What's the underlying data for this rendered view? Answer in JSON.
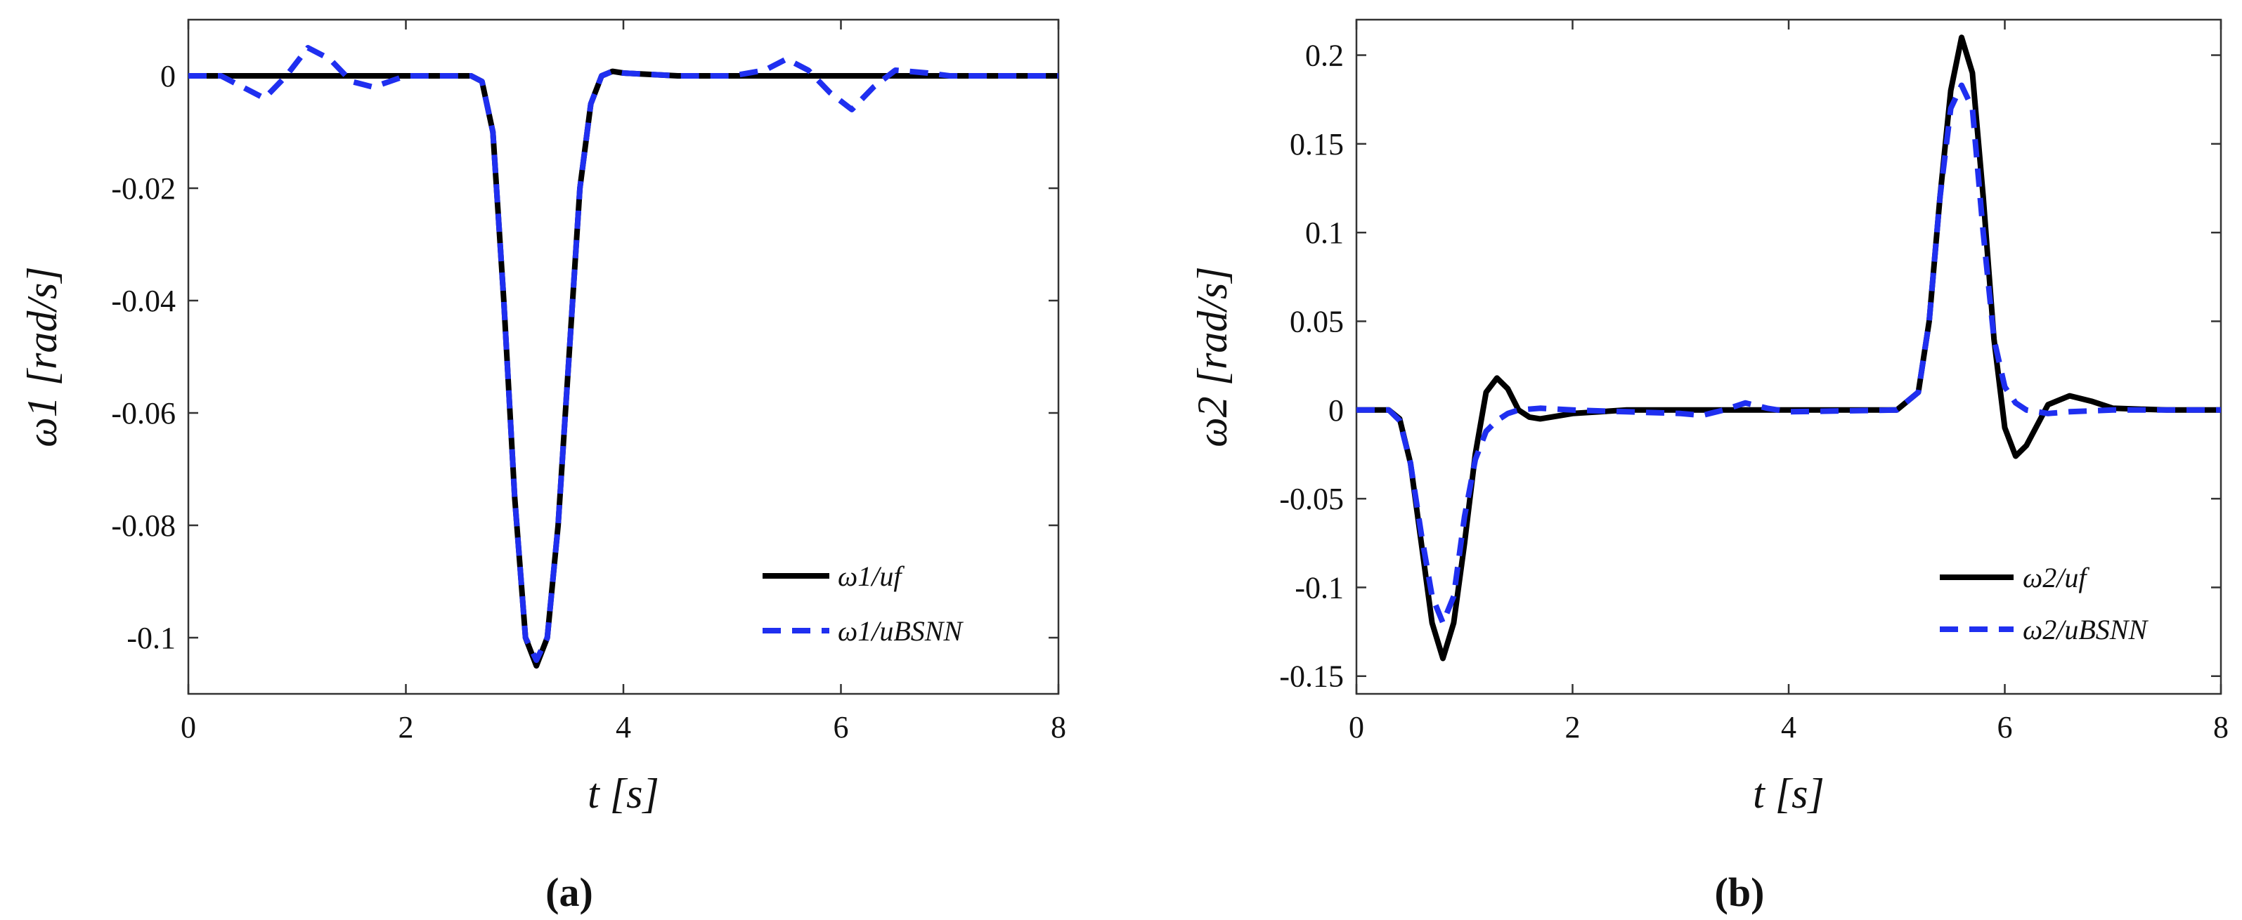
{
  "colors": {
    "uf": "#000000",
    "ubsnn": "#1f2ff0",
    "axis": "#333333"
  },
  "chart_data": [
    {
      "type": "line",
      "caption": "(a)",
      "xlabel": "t [s]",
      "ylabel": "ω1 [rad/s]",
      "xlim": [
        0,
        8
      ],
      "ylim": [
        -0.11,
        0.01
      ],
      "xticks": [
        0,
        2,
        4,
        6,
        8
      ],
      "xtick_labels": [
        "0",
        "2",
        "4",
        "6",
        "8"
      ],
      "yticks": [
        0,
        -0.02,
        -0.04,
        -0.06,
        -0.08,
        -0.1
      ],
      "ytick_labels": [
        "0",
        "-0.02",
        "-0.04",
        "-0.06",
        "-0.08",
        "-0.1"
      ],
      "legend_position": "bottom-right",
      "series": [
        {
          "name": "ω1/uf",
          "style": "solid",
          "x": [
            0,
            1,
            2,
            2.6,
            2.7,
            2.8,
            2.9,
            3.0,
            3.1,
            3.2,
            3.3,
            3.4,
            3.5,
            3.6,
            3.7,
            3.8,
            3.9,
            4.0,
            4.5,
            5,
            6,
            7,
            8
          ],
          "y": [
            0,
            0,
            0,
            0,
            -0.001,
            -0.01,
            -0.04,
            -0.075,
            -0.1,
            -0.105,
            -0.1,
            -0.08,
            -0.05,
            -0.02,
            -0.005,
            0,
            0.0008,
            0.0005,
            0,
            0,
            0,
            0,
            0
          ]
        },
        {
          "name": "ω1/uBSNN",
          "style": "dashed",
          "x": [
            0,
            0.3,
            0.5,
            0.7,
            0.9,
            1.1,
            1.3,
            1.5,
            1.7,
            2.0,
            2.6,
            2.7,
            2.8,
            2.9,
            3.0,
            3.1,
            3.2,
            3.3,
            3.4,
            3.5,
            3.6,
            3.7,
            3.8,
            3.9,
            4.0,
            4.5,
            5.0,
            5.3,
            5.5,
            5.7,
            5.9,
            6.1,
            6.3,
            6.5,
            6.8,
            7.0,
            8.0
          ],
          "y": [
            0,
            0,
            -0.002,
            -0.004,
            0,
            0.005,
            0.003,
            -0.001,
            -0.002,
            0,
            0,
            -0.001,
            -0.01,
            -0.04,
            -0.075,
            -0.1,
            -0.104,
            -0.1,
            -0.08,
            -0.05,
            -0.02,
            -0.005,
            0,
            0.0008,
            0.0005,
            0,
            0,
            0.001,
            0.003,
            0.001,
            -0.003,
            -0.006,
            -0.002,
            0.001,
            0.0005,
            0,
            0
          ]
        }
      ]
    },
    {
      "type": "line",
      "caption": "(b)",
      "xlabel": "t [s]",
      "ylabel": "ω2 [rad/s]",
      "xlim": [
        0,
        8
      ],
      "ylim": [
        -0.16,
        0.22
      ],
      "xticks": [
        0,
        2,
        4,
        6,
        8
      ],
      "xtick_labels": [
        "0",
        "2",
        "4",
        "6",
        "8"
      ],
      "yticks": [
        0.2,
        0.15,
        0.1,
        0.05,
        0,
        -0.05,
        -0.1,
        -0.15
      ],
      "ytick_labels": [
        "0.2",
        "0.15",
        "0.1",
        "0.05",
        "0",
        "-0.05",
        "-0.1",
        "-0.15"
      ],
      "legend_position": "bottom-right",
      "series": [
        {
          "name": "ω2/uf",
          "style": "solid",
          "x": [
            0,
            0.3,
            0.4,
            0.5,
            0.6,
            0.7,
            0.8,
            0.9,
            1.0,
            1.1,
            1.2,
            1.3,
            1.4,
            1.5,
            1.6,
            1.7,
            1.8,
            2.0,
            2.5,
            3.0,
            5.0,
            5.2,
            5.3,
            5.4,
            5.5,
            5.6,
            5.7,
            5.8,
            5.9,
            6.0,
            6.1,
            6.2,
            6.4,
            6.6,
            6.8,
            7.0,
            7.5,
            8.0
          ],
          "y": [
            0,
            0,
            -0.005,
            -0.03,
            -0.075,
            -0.12,
            -0.14,
            -0.12,
            -0.075,
            -0.025,
            0.01,
            0.018,
            0.012,
            0,
            -0.004,
            -0.005,
            -0.004,
            -0.002,
            0,
            0,
            0,
            0.01,
            0.05,
            0.12,
            0.18,
            0.21,
            0.19,
            0.12,
            0.04,
            -0.01,
            -0.026,
            -0.02,
            0.003,
            0.008,
            0.005,
            0.001,
            0,
            0
          ]
        },
        {
          "name": "ω2/uBSNN",
          "style": "dashed",
          "x": [
            0,
            0.3,
            0.4,
            0.5,
            0.6,
            0.7,
            0.8,
            0.9,
            1.0,
            1.1,
            1.2,
            1.3,
            1.4,
            1.5,
            1.7,
            2.0,
            2.5,
            3.0,
            3.2,
            3.4,
            3.6,
            3.8,
            4.0,
            5.0,
            5.2,
            5.3,
            5.4,
            5.5,
            5.6,
            5.7,
            5.8,
            5.9,
            6.0,
            6.1,
            6.2,
            6.4,
            6.6,
            7.0,
            8.0
          ],
          "y": [
            0,
            0,
            -0.006,
            -0.03,
            -0.07,
            -0.105,
            -0.12,
            -0.105,
            -0.06,
            -0.028,
            -0.012,
            -0.006,
            -0.002,
            0,
            0.001,
            0,
            -0.001,
            -0.002,
            -0.003,
            0,
            0.004,
            0.001,
            -0.001,
            0,
            0.01,
            0.05,
            0.12,
            0.17,
            0.183,
            0.17,
            0.1,
            0.04,
            0.013,
            0.004,
            0,
            -0.002,
            -0.001,
            0,
            0
          ]
        }
      ]
    }
  ]
}
